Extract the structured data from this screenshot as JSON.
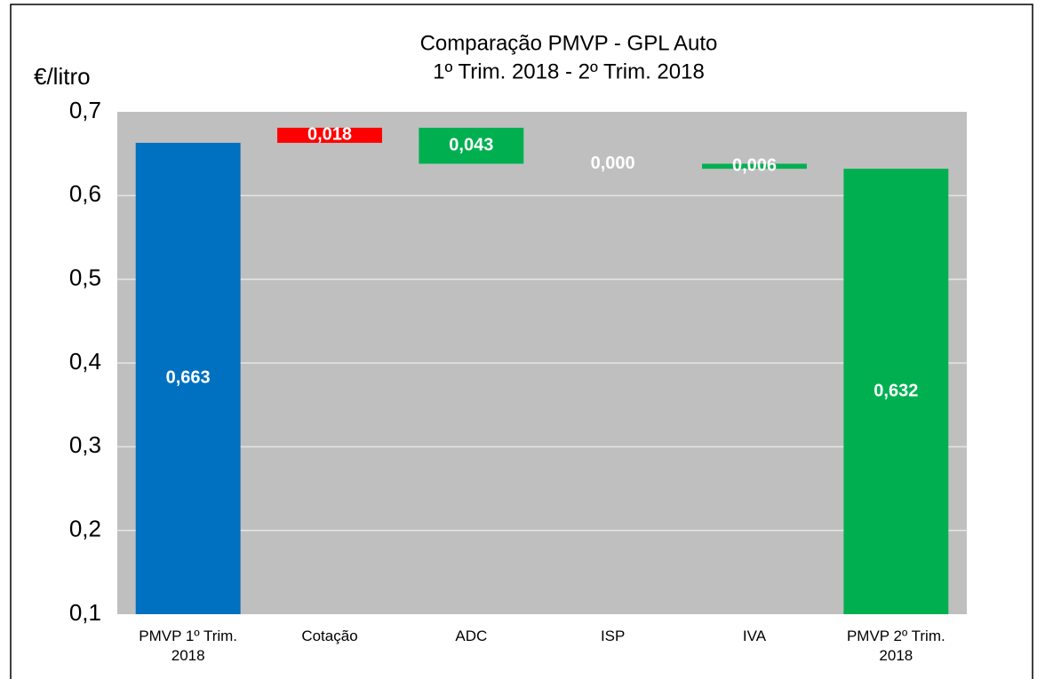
{
  "chart_data": {
    "type": "waterfall",
    "title": "Comparação PMVP - GPL Auto",
    "subtitle": "1º Trim. 2018 - 2º Trim. 2018",
    "y_label": "€/litro",
    "categories": [
      "PMVP 1º Trim. 2018",
      "Cotação",
      "ADC",
      "ISP",
      "IVA",
      "PMVP 2º Trim. 2018"
    ],
    "values": [
      0.663,
      0.018,
      0.043,
      0,
      0.006,
      0.632
    ],
    "value_labels": [
      "0,663",
      "0,018",
      "0,043",
      "0,000",
      "0,006",
      "0,632"
    ],
    "measure": [
      "absolute",
      "increase",
      "decrease",
      "decrease",
      "decrease",
      "absolute"
    ],
    "colors": [
      "#0070c0",
      "#ff0000",
      "#00b050",
      "#00b050",
      "#00b050",
      "#00b050"
    ],
    "ylim": [
      0.1,
      0.7
    ],
    "yticks": [
      {
        "value": 0.1,
        "label": "0,1"
      },
      {
        "value": 0.2,
        "label": "0,2"
      },
      {
        "value": 0.3,
        "label": "0,3"
      },
      {
        "value": 0.4,
        "label": "0,4"
      },
      {
        "value": 0.5,
        "label": "0,5"
      },
      {
        "value": 0.6,
        "label": "0,6"
      },
      {
        "value": 0.7,
        "label": "0,7"
      }
    ],
    "grid": true
  }
}
